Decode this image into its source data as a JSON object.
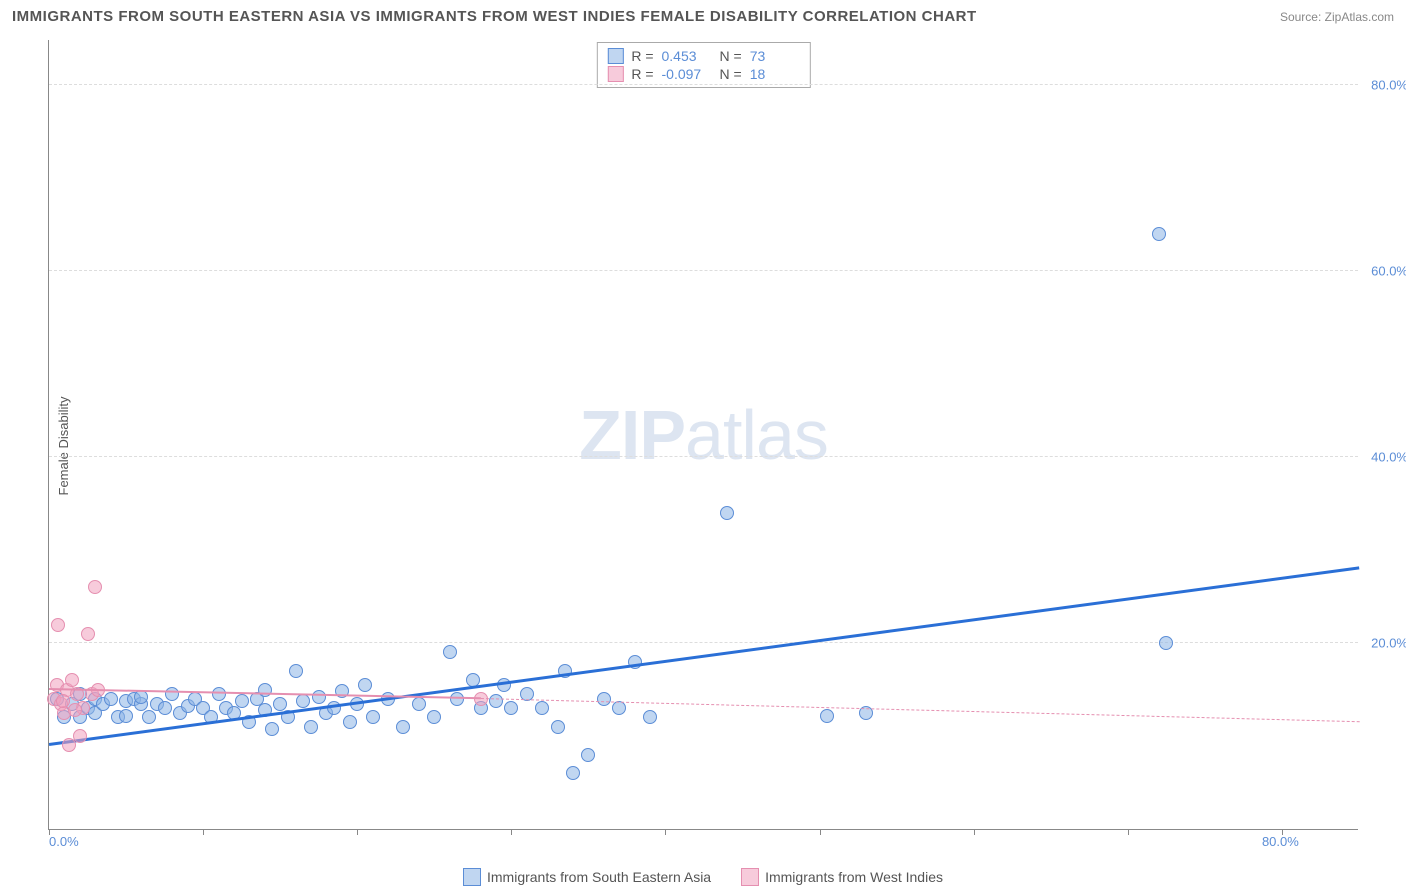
{
  "header": {
    "title": "IMMIGRANTS FROM SOUTH EASTERN ASIA VS IMMIGRANTS FROM WEST INDIES FEMALE DISABILITY CORRELATION CHART",
    "source": "Source: ZipAtlas.com"
  },
  "watermark": {
    "prefix": "ZIP",
    "suffix": "atlas"
  },
  "chart": {
    "type": "scatter",
    "ylabel": "Female Disability",
    "axis_label_fontsize": 13,
    "axis_label_color": "#555555",
    "tick_label_color": "#5b8dd6",
    "tick_label_fontsize": 13,
    "background_color": "#ffffff",
    "grid_color": "#dddddd",
    "axis_color": "#888888",
    "xlim": [
      0,
      85
    ],
    "ylim": [
      0,
      85
    ],
    "x_ticks": [
      {
        "pos": 0,
        "label": "0.0%"
      },
      {
        "pos": 10,
        "label": ""
      },
      {
        "pos": 20,
        "label": ""
      },
      {
        "pos": 30,
        "label": ""
      },
      {
        "pos": 40,
        "label": ""
      },
      {
        "pos": 50,
        "label": ""
      },
      {
        "pos": 60,
        "label": ""
      },
      {
        "pos": 70,
        "label": ""
      },
      {
        "pos": 80,
        "label": "80.0%"
      }
    ],
    "y_ticks": [
      {
        "pos": 20,
        "label": "20.0%"
      },
      {
        "pos": 40,
        "label": "40.0%"
      },
      {
        "pos": 60,
        "label": "60.0%"
      },
      {
        "pos": 80,
        "label": "80.0%"
      }
    ],
    "series": [
      {
        "name": "Immigrants from South Eastern Asia",
        "color_fill": "rgba(140,180,230,0.55)",
        "color_stroke": "#5b8dd6",
        "marker_radius": 7,
        "R": "0.453",
        "N": "73",
        "trend": {
          "x1": 0,
          "y1": 9,
          "x2": 85,
          "y2": 28,
          "color": "#2a6fd6",
          "width": 2.5,
          "dash": false
        },
        "points": [
          [
            0.5,
            14
          ],
          [
            1,
            12
          ],
          [
            1.5,
            13.5
          ],
          [
            2,
            14.5
          ],
          [
            2,
            12
          ],
          [
            2.5,
            13
          ],
          [
            3,
            14
          ],
          [
            3,
            12.5
          ],
          [
            3.5,
            13.5
          ],
          [
            4,
            14
          ],
          [
            4.5,
            12
          ],
          [
            5,
            13.8
          ],
          [
            5,
            12.2
          ],
          [
            5.5,
            14
          ],
          [
            6,
            13.5
          ],
          [
            6,
            14.2
          ],
          [
            6.5,
            12
          ],
          [
            7,
            13.5
          ],
          [
            7.5,
            13
          ],
          [
            8,
            14.5
          ],
          [
            8.5,
            12.5
          ],
          [
            9,
            13.2
          ],
          [
            9.5,
            14
          ],
          [
            10,
            13
          ],
          [
            10.5,
            12
          ],
          [
            11,
            14.5
          ],
          [
            11.5,
            13
          ],
          [
            12,
            12.5
          ],
          [
            12.5,
            13.8
          ],
          [
            13,
            11.5
          ],
          [
            13.5,
            14
          ],
          [
            14,
            12.8
          ],
          [
            14,
            15
          ],
          [
            14.5,
            10.8
          ],
          [
            15,
            13.5
          ],
          [
            15.5,
            12
          ],
          [
            16,
            17
          ],
          [
            16.5,
            13.8
          ],
          [
            17,
            11
          ],
          [
            17.5,
            14.2
          ],
          [
            18,
            12.5
          ],
          [
            18.5,
            13
          ],
          [
            19,
            14.8
          ],
          [
            19.5,
            11.5
          ],
          [
            20,
            13.5
          ],
          [
            20.5,
            15.5
          ],
          [
            21,
            12
          ],
          [
            22,
            14
          ],
          [
            23,
            11
          ],
          [
            24,
            13.5
          ],
          [
            25,
            12
          ],
          [
            26,
            19
          ],
          [
            26.5,
            14
          ],
          [
            27.5,
            16
          ],
          [
            28,
            13
          ],
          [
            29,
            13.8
          ],
          [
            29.5,
            15.5
          ],
          [
            30,
            13
          ],
          [
            31,
            14.5
          ],
          [
            32,
            13
          ],
          [
            33,
            11
          ],
          [
            33.5,
            17
          ],
          [
            34,
            6
          ],
          [
            35,
            8
          ],
          [
            36,
            14
          ],
          [
            37,
            13
          ],
          [
            38,
            18
          ],
          [
            39,
            12
          ],
          [
            44,
            34
          ],
          [
            53,
            12.5
          ],
          [
            72,
            64
          ],
          [
            72.5,
            20
          ],
          [
            50.5,
            12.2
          ]
        ]
      },
      {
        "name": "Immigrants from West Indies",
        "color_fill": "rgba(240,160,190,0.55)",
        "color_stroke": "#e58fb0",
        "marker_radius": 7,
        "R": "-0.097",
        "N": "18",
        "trend_solid": {
          "x1": 0,
          "y1": 15,
          "x2": 28,
          "y2": 14,
          "color": "#e58fb0",
          "width": 2,
          "dash": false
        },
        "trend_dash": {
          "x1": 28,
          "y1": 14,
          "x2": 85,
          "y2": 11.5,
          "color": "#e58fb0",
          "width": 1.2,
          "dash": true
        },
        "points": [
          [
            0.3,
            14
          ],
          [
            0.5,
            15.5
          ],
          [
            0.8,
            13.5
          ],
          [
            1,
            12.5
          ],
          [
            1.2,
            15
          ],
          [
            1.5,
            16
          ],
          [
            1.8,
            14.5
          ],
          [
            2,
            10
          ],
          [
            2.2,
            13
          ],
          [
            2.5,
            21
          ],
          [
            2.8,
            14.5
          ],
          [
            3,
            26
          ],
          [
            3.2,
            15
          ],
          [
            0.6,
            22
          ],
          [
            1.3,
            9
          ],
          [
            0.9,
            13.8
          ],
          [
            1.7,
            12.8
          ],
          [
            28,
            14
          ]
        ]
      }
    ]
  },
  "stats_box": {
    "border_color": "#aaaaaa",
    "rows": [
      {
        "swatch_fill": "rgba(140,180,230,0.55)",
        "swatch_stroke": "#5b8dd6",
        "R_label": "R =",
        "R": "0.453",
        "N_label": "N =",
        "N": "73"
      },
      {
        "swatch_fill": "rgba(240,160,190,0.55)",
        "swatch_stroke": "#e58fb0",
        "R_label": "R =",
        "R": "-0.097",
        "N_label": "N =",
        "N": "18"
      }
    ]
  },
  "bottom_legend": {
    "items": [
      {
        "swatch_fill": "rgba(140,180,230,0.55)",
        "swatch_stroke": "#5b8dd6",
        "label": "Immigrants from South Eastern Asia"
      },
      {
        "swatch_fill": "rgba(240,160,190,0.55)",
        "swatch_stroke": "#e58fb0",
        "label": "Immigrants from West Indies"
      }
    ]
  }
}
